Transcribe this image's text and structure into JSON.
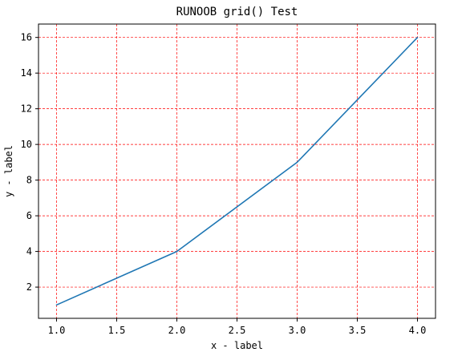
{
  "chart_data": {
    "type": "line",
    "title": "RUNOOB grid() Test",
    "xlabel": "x - label",
    "ylabel": "y - label",
    "x": [
      1,
      2,
      3,
      4
    ],
    "series": [
      {
        "values": [
          1,
          4,
          9,
          16
        ],
        "color": "#1f77b4"
      }
    ],
    "xlim": [
      0.85,
      4.15
    ],
    "ylim": [
      0.25,
      16.75
    ],
    "x_ticks": [
      "1.0",
      "1.5",
      "2.0",
      "2.5",
      "3.0",
      "3.5",
      "4.0"
    ],
    "y_ticks": [
      "2",
      "4",
      "6",
      "8",
      "10",
      "12",
      "14",
      "16"
    ],
    "grid": true,
    "grid_color": "#ff0000",
    "grid_style": "dashed",
    "axis_color": "#000000"
  }
}
